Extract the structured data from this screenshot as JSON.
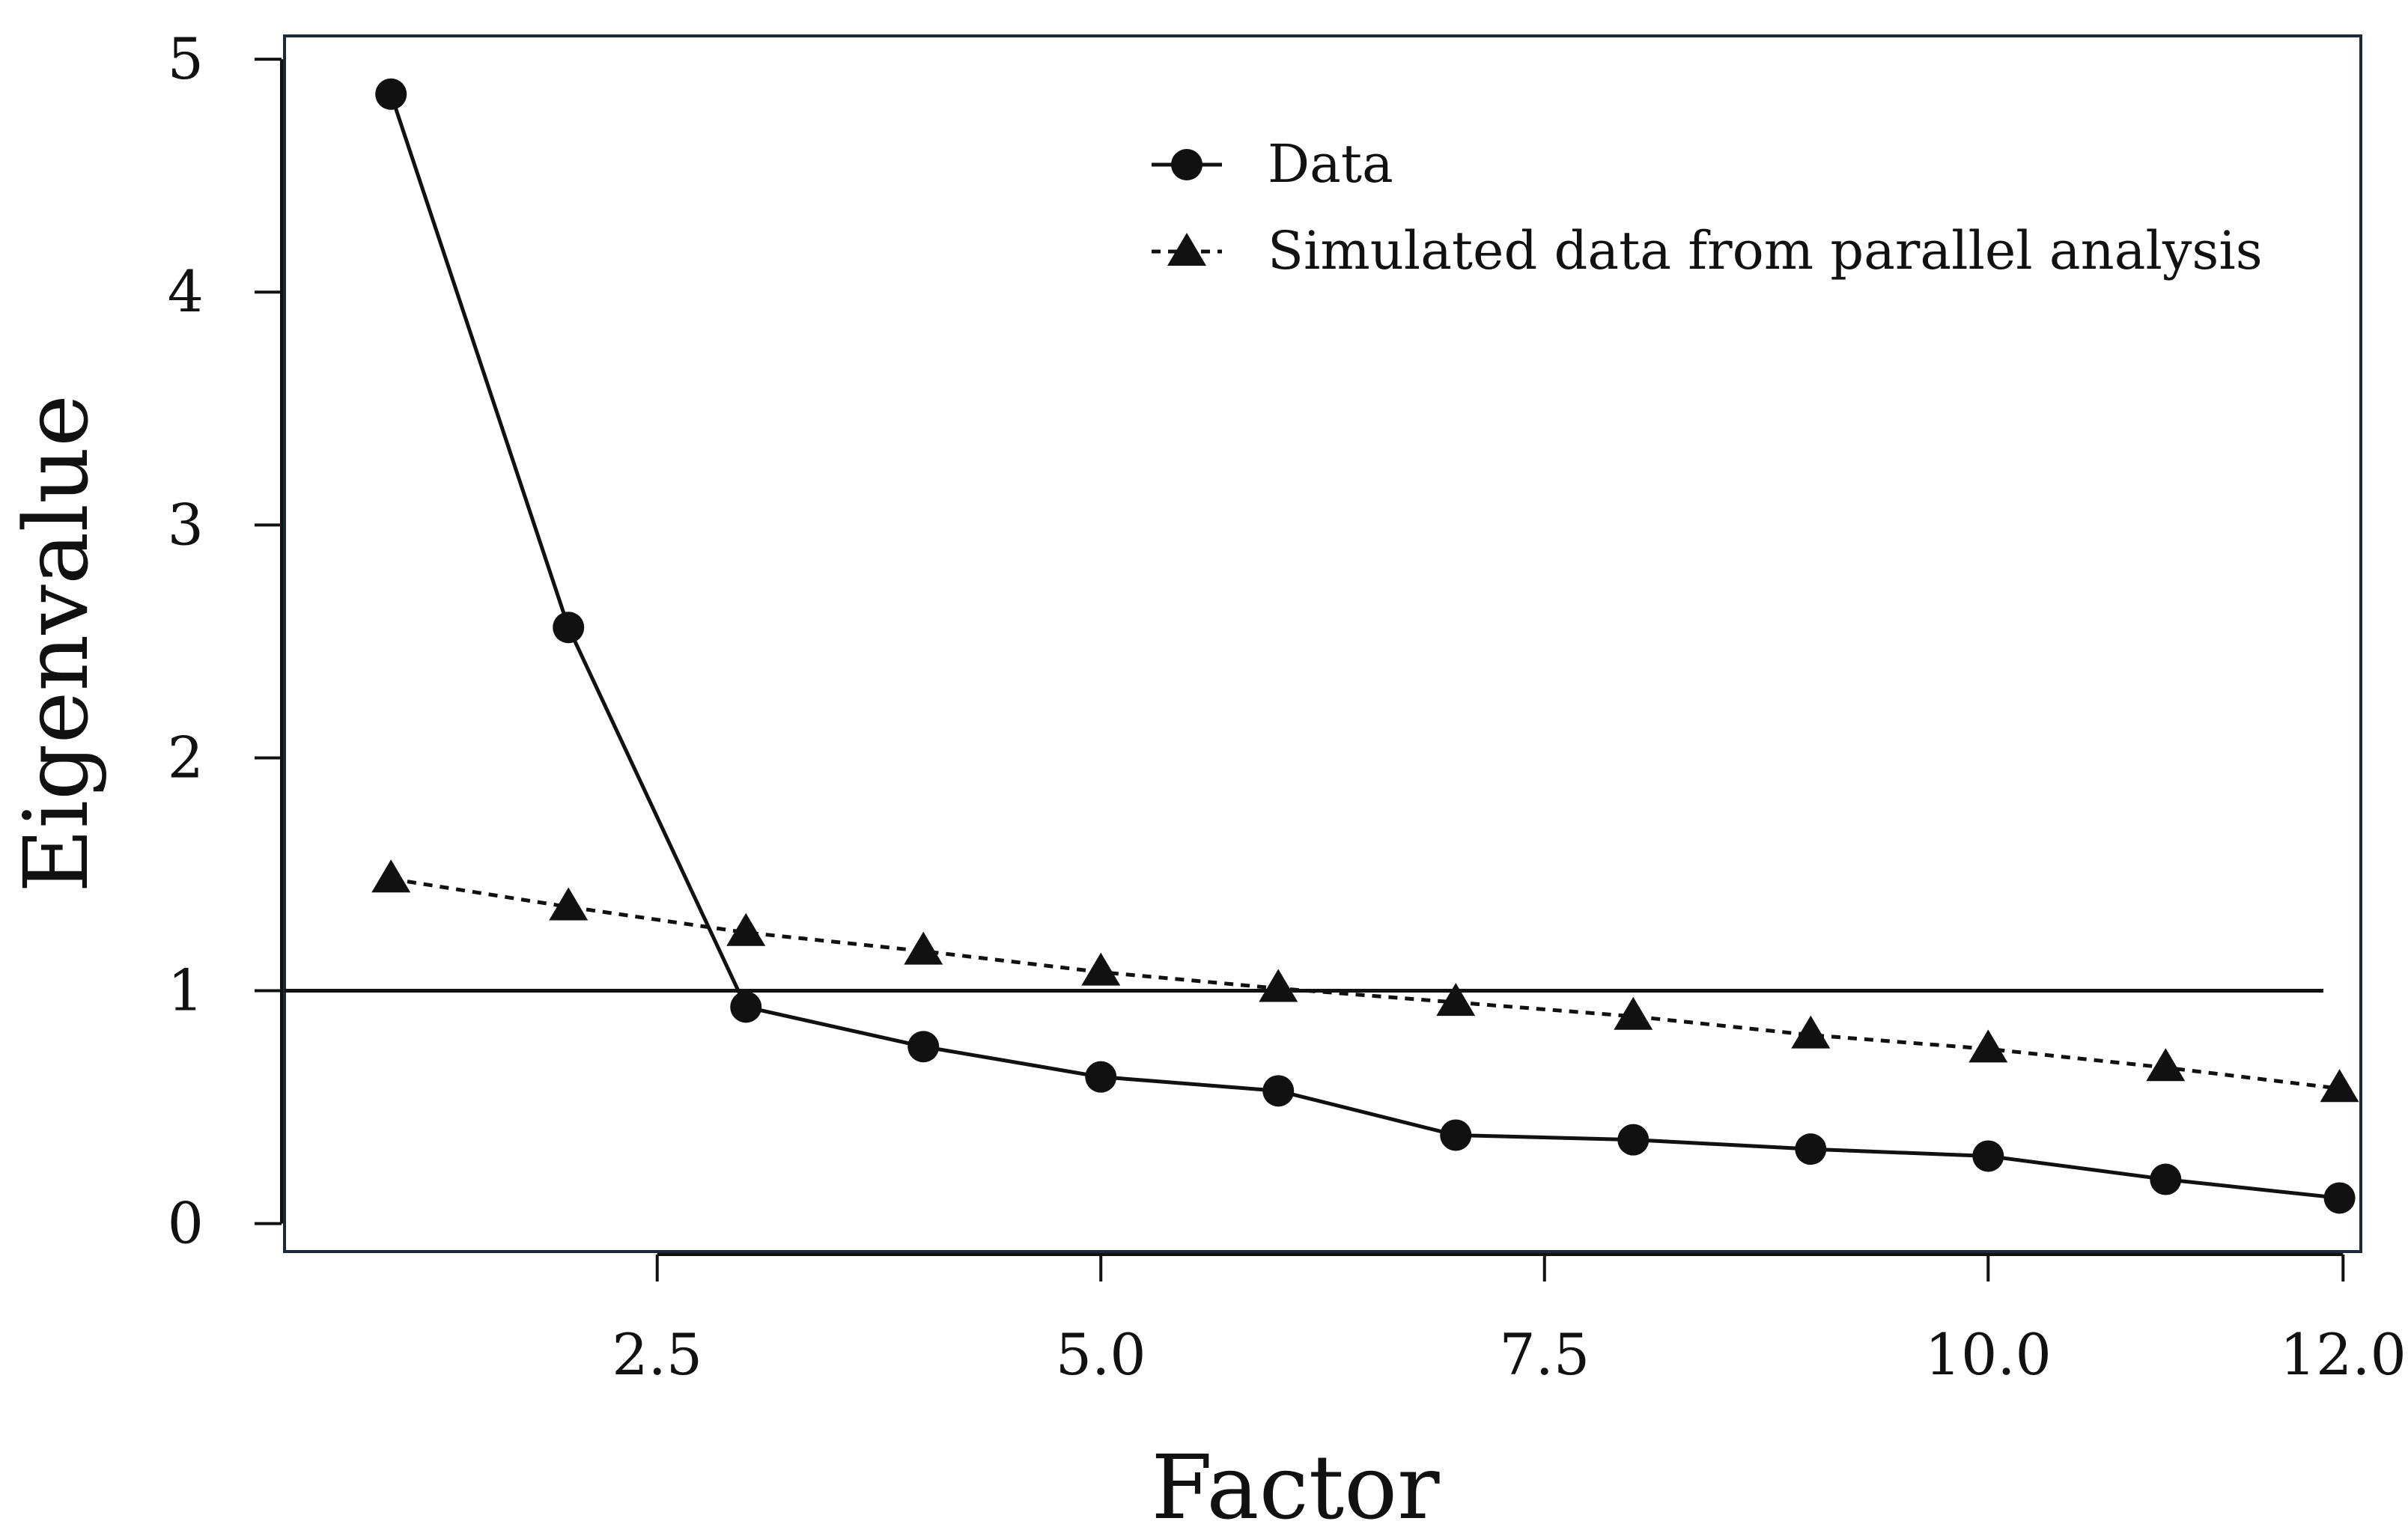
{
  "chart_data": {
    "type": "line",
    "title": "",
    "xlabel": "Factor",
    "ylabel": "Eigenvalue",
    "xlim": [
      0.4,
      12.1
    ],
    "ylim": [
      -0.12,
      5.1
    ],
    "x_ticks": [
      2.5,
      5.0,
      7.5,
      10.0,
      12.0
    ],
    "x_tick_labels": [
      "2.5",
      "5.0",
      "7.5",
      "10.0",
      "12.0"
    ],
    "y_ticks": [
      0,
      1,
      2,
      3,
      4,
      5
    ],
    "y_tick_labels": [
      "0",
      "1",
      "2",
      "3",
      "4",
      "5"
    ],
    "grid": false,
    "legend_position": "top-right",
    "reference_line": {
      "y": 1
    },
    "series": [
      {
        "name": "Data",
        "marker": "circle",
        "line_style": "solid",
        "x": [
          1,
          2,
          3,
          4,
          5,
          6,
          7,
          8,
          9,
          10,
          11,
          11.98
        ],
        "values": [
          4.85,
          2.56,
          0.93,
          0.76,
          0.63,
          0.57,
          0.38,
          0.36,
          0.32,
          0.29,
          0.19,
          0.11
        ]
      },
      {
        "name": "Simulated data from parallel analysis",
        "marker": "triangle",
        "line_style": "dashed",
        "x": [
          1,
          2,
          3,
          4,
          5,
          6,
          7,
          8,
          9,
          10,
          11,
          11.98
        ],
        "values": [
          1.48,
          1.36,
          1.25,
          1.17,
          1.08,
          1.01,
          0.95,
          0.89,
          0.81,
          0.75,
          0.67,
          0.58
        ]
      }
    ]
  }
}
